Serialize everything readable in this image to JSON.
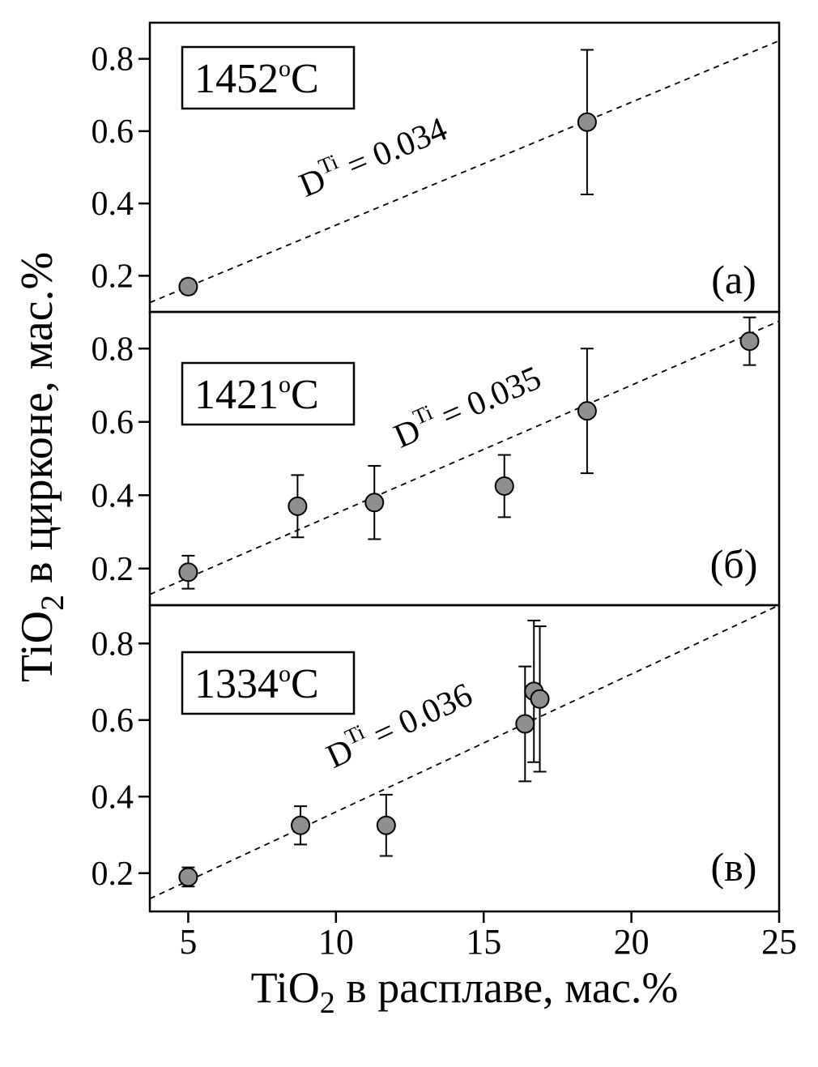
{
  "axes": {
    "x": {
      "title": {
        "main": "TiO",
        "sub": "2",
        "rest": " в расплаве, мас.%"
      },
      "tick_labels": [
        "5",
        "10",
        "15",
        "20",
        "25"
      ],
      "tick_values": [
        5,
        10,
        15,
        20,
        25
      ],
      "range": [
        3.7,
        25
      ]
    },
    "y": {
      "title": {
        "main": "TiO",
        "sub": "2",
        "rest": " в цирконе, мас.%"
      },
      "tick_labels": [
        "0.2",
        "0.4",
        "0.6",
        "0.8"
      ],
      "tick_values": [
        0.2,
        0.4,
        0.6,
        0.8
      ],
      "range": [
        0.1,
        0.9
      ]
    }
  },
  "style": {
    "point_fill": "#8f8f8f",
    "point_stroke": "#000000",
    "axis_color": "#000000",
    "trend_color": "#000000",
    "background": "#ffffff"
  },
  "chart_data": [
    {
      "type": "scatter",
      "panel_label": "(а)",
      "temperature": {
        "value": "1452",
        "sup": "o",
        "unit": "C"
      },
      "trend": {
        "slope": 0.034,
        "label": {
          "main": "D",
          "sup": "Ti",
          "rest": " = 0.034"
        },
        "label_x": 11.4,
        "label_dy": -50
      },
      "points": [
        {
          "x": 5.0,
          "y": 0.17,
          "err": 0.02
        },
        {
          "x": 18.5,
          "y": 0.625,
          "err": 0.2
        }
      ],
      "xlim": [
        3.7,
        25
      ],
      "ylim": [
        0.1,
        0.9
      ],
      "grid": false
    },
    {
      "type": "scatter",
      "panel_label": "(б)",
      "temperature": {
        "value": "1421",
        "sup": "o",
        "unit": "C"
      },
      "trend": {
        "slope": 0.035,
        "label": {
          "main": "D",
          "sup": "Ti",
          "rest": " = 0.035"
        },
        "label_x": 14.6,
        "label_dy": -46
      },
      "points": [
        {
          "x": 5.0,
          "y": 0.19,
          "err": 0.045
        },
        {
          "x": 8.7,
          "y": 0.37,
          "err": 0.085
        },
        {
          "x": 11.3,
          "y": 0.38,
          "err": 0.1
        },
        {
          "x": 15.7,
          "y": 0.425,
          "err": 0.085
        },
        {
          "x": 18.5,
          "y": 0.63,
          "err": 0.17
        },
        {
          "x": 24.0,
          "y": 0.82,
          "err": 0.065
        }
      ],
      "xlim": [
        3.7,
        25
      ],
      "ylim": [
        0.1,
        0.9
      ],
      "grid": false
    },
    {
      "type": "scatter",
      "panel_label": "(в)",
      "temperature": {
        "value": "1334",
        "sup": "o",
        "unit": "C"
      },
      "trend": {
        "slope": 0.036,
        "label": {
          "main": "D",
          "sup": "Ti",
          "rest": " = 0.036"
        },
        "label_x": 12.3,
        "label_dy": -55
      },
      "points": [
        {
          "x": 5.0,
          "y": 0.19,
          "err": 0.025
        },
        {
          "x": 8.8,
          "y": 0.325,
          "err": 0.05
        },
        {
          "x": 11.7,
          "y": 0.325,
          "err": 0.08
        },
        {
          "x": 16.4,
          "y": 0.59,
          "err": 0.15
        },
        {
          "x": 16.7,
          "y": 0.675,
          "err": 0.185
        },
        {
          "x": 16.9,
          "y": 0.655,
          "err": 0.19
        }
      ],
      "xlim": [
        3.7,
        25
      ],
      "ylim": [
        0.1,
        0.9
      ],
      "grid": false
    }
  ]
}
